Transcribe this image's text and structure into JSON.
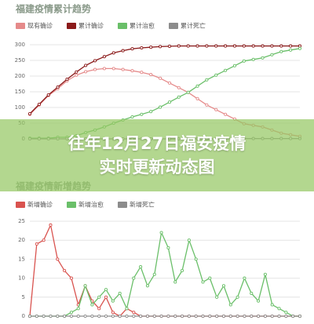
{
  "chart_data": [
    {
      "type": "line",
      "title": "福建疫情累计趋势",
      "ylim": [
        0,
        300
      ],
      "yticks": [
        0,
        50,
        100,
        150,
        200,
        250,
        300
      ],
      "grid": true,
      "series": [
        {
          "name": "现有确诊",
          "color": "#e58a8a",
          "values": [
            78,
            108,
            138,
            160,
            185,
            203,
            214,
            221,
            224,
            224,
            221,
            217,
            212,
            205,
            193,
            178,
            163,
            148,
            128,
            108,
            93,
            78,
            63,
            48,
            43,
            38,
            28,
            18,
            13,
            8
          ]
        },
        {
          "name": "累计确诊",
          "color": "#8b1a1a",
          "values": [
            80,
            110,
            140,
            165,
            190,
            213,
            234,
            249,
            262,
            274,
            281,
            287,
            290,
            292,
            294,
            295,
            296,
            296,
            296,
            296,
            296,
            296,
            296,
            296,
            296,
            296,
            296,
            296,
            296,
            296
          ]
        },
        {
          "name": "累计治愈",
          "color": "#6abf69",
          "values": [
            2,
            2,
            2,
            5,
            5,
            10,
            20,
            28,
            38,
            50,
            60,
            70,
            78,
            87,
            101,
            117,
            133,
            148,
            168,
            188,
            203,
            218,
            233,
            248,
            253,
            258,
            268,
            278,
            283,
            288
          ]
        },
        {
          "name": "累计死亡",
          "color": "#8c8c8c",
          "values": [
            0,
            0,
            0,
            0,
            0,
            0,
            0,
            0,
            0,
            0,
            0,
            0,
            0,
            0,
            0,
            0,
            0,
            0,
            0,
            0,
            0,
            1,
            1,
            1,
            1,
            1,
            1,
            1,
            1,
            1
          ]
        }
      ]
    },
    {
      "type": "line",
      "title": "福建疫情新增趋势",
      "ylim": [
        0,
        25
      ],
      "yticks": [
        0,
        5,
        10,
        15,
        20,
        25
      ],
      "grid": true,
      "series": [
        {
          "name": "新增确诊",
          "color": "#d9534f",
          "values": [
            0,
            19,
            20,
            24,
            15,
            12,
            10,
            3,
            8,
            4,
            2,
            5,
            1,
            0,
            2,
            1,
            0,
            0,
            0,
            0,
            0,
            0,
            0,
            0,
            0,
            0,
            0,
            0,
            0,
            0,
            0,
            0,
            0,
            0,
            0,
            0,
            0,
            0,
            0,
            0
          ]
        },
        {
          "name": "新增治愈",
          "color": "#6abf69",
          "values": [
            0,
            0,
            0,
            0,
            0,
            0,
            1,
            2,
            8,
            3,
            5,
            7,
            4,
            6,
            2,
            10,
            13,
            8,
            11,
            22,
            18,
            9,
            12,
            20,
            15,
            9,
            10,
            5,
            8,
            3,
            5,
            10,
            6,
            4,
            11,
            3,
            2,
            1,
            0,
            0
          ]
        },
        {
          "name": "新增死亡",
          "color": "#8c8c8c",
          "values": [
            0,
            0,
            0,
            0,
            0,
            0,
            0,
            0,
            0,
            0,
            0,
            0,
            0,
            0,
            0,
            0,
            0,
            0,
            0,
            0,
            0,
            0,
            0,
            0,
            0,
            0,
            0,
            0,
            0,
            0,
            0,
            0,
            0,
            0,
            0,
            0,
            0,
            0,
            0,
            0
          ]
        }
      ]
    }
  ],
  "banner": [
    "往年12月27日福安疫情",
    "实时更新动态图"
  ]
}
